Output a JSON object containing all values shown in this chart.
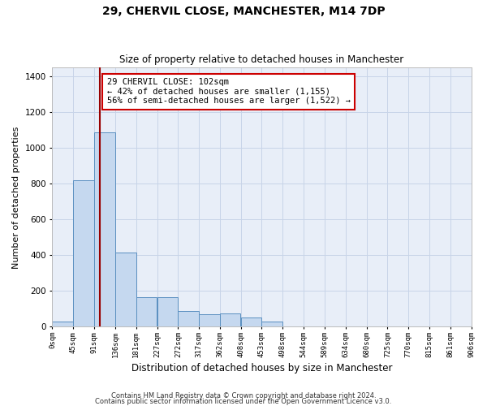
{
  "title": "29, CHERVIL CLOSE, MANCHESTER, M14 7DP",
  "subtitle": "Size of property relative to detached houses in Manchester",
  "xlabel": "Distribution of detached houses by size in Manchester",
  "ylabel": "Number of detached properties",
  "annotation_line1": "29 CHERVIL CLOSE: 102sqm",
  "annotation_line2": "← 42% of detached houses are smaller (1,155)",
  "annotation_line3": "56% of semi-detached houses are larger (1,522) →",
  "footer_line1": "Contains HM Land Registry data © Crown copyright and database right 2024.",
  "footer_line2": "Contains public sector information licensed under the Open Government Licence v3.0.",
  "bin_labels": [
    "0sqm",
    "45sqm",
    "91sqm",
    "136sqm",
    "181sqm",
    "227sqm",
    "272sqm",
    "317sqm",
    "362sqm",
    "408sqm",
    "453sqm",
    "498sqm",
    "544sqm",
    "589sqm",
    "634sqm",
    "680sqm",
    "725sqm",
    "770sqm",
    "815sqm",
    "861sqm",
    "906sqm"
  ],
  "bin_edges": [
    0,
    45,
    91,
    136,
    181,
    227,
    272,
    317,
    362,
    408,
    453,
    498,
    544,
    589,
    634,
    680,
    725,
    770,
    815,
    861,
    906
  ],
  "bar_heights": [
    30,
    820,
    1090,
    415,
    165,
    165,
    88,
    70,
    75,
    50,
    30,
    0,
    0,
    0,
    0,
    0,
    0,
    0,
    0,
    0
  ],
  "bar_color": "#c5d8ef",
  "bar_edge_color": "#5a8fc0",
  "grid_color": "#c8d4e8",
  "bg_color": "#e8eef8",
  "vline_color": "#990000",
  "vline_x": 102,
  "ylim": [
    0,
    1450
  ],
  "yticks": [
    0,
    200,
    400,
    600,
    800,
    1000,
    1200,
    1400
  ],
  "annotation_box_color": "#cc0000",
  "title_fontsize": 10,
  "subtitle_fontsize": 8.5
}
